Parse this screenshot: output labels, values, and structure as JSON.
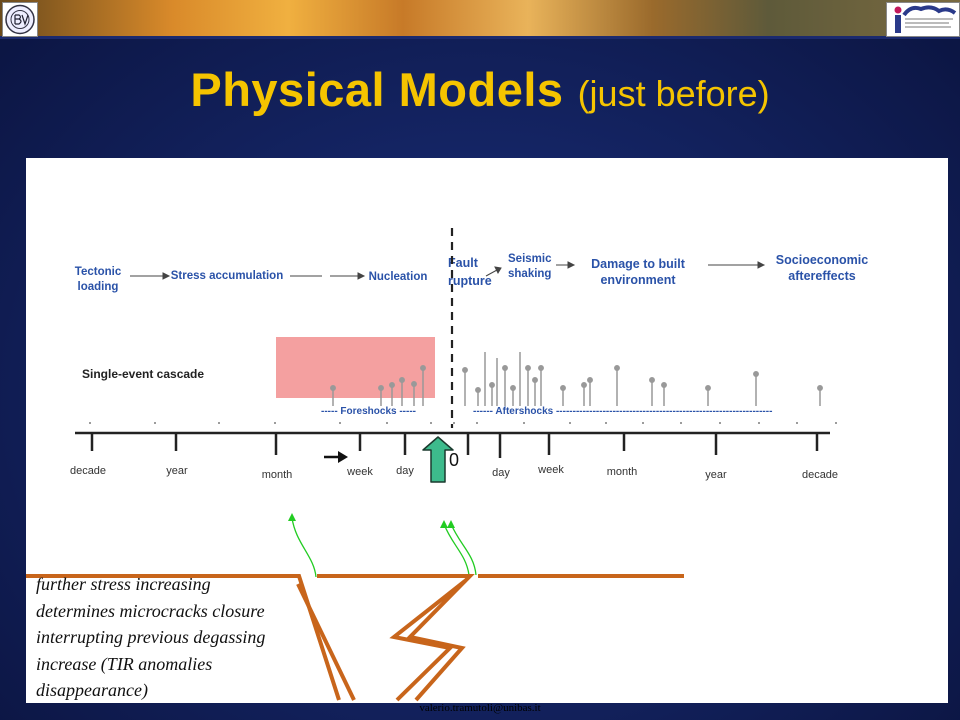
{
  "header": {
    "title_main": "Physical Models",
    "title_sub": "(just before)"
  },
  "process_chain": [
    "Tectonic loading",
    "Stress accumulation",
    "Nucleation",
    "Fault rupture",
    "Seismic shaking",
    "Damage to built environment",
    "Socioeconomic aftereffects"
  ],
  "cascade": {
    "label": "Single-event cascade",
    "foreshocks_label": "----- Foreshocks -----",
    "aftershocks_label": "------ Aftershocks -----------------------------------------------------------------"
  },
  "timeline": {
    "origin_label": "0",
    "left_ticks": [
      "decade",
      "year",
      "month",
      "week",
      "day"
    ],
    "right_ticks": [
      "day",
      "week",
      "month",
      "year",
      "decade"
    ]
  },
  "caption_lines": [
    "further stress increasing",
    "determines microcracks closure",
    "interrupting previous degassing",
    "increase (TIR anomalies",
    "disappearance)"
  ],
  "footer": {
    "email": "valerio.tramutoli@unibas.it"
  },
  "colors": {
    "title": "#f5c400",
    "fault": "#c8651b",
    "gas_arrow": "#22cc22",
    "highlight": "#f4a0a0",
    "origin_arrow": "#3dbb8c",
    "diagram_blue": "#2a52a8"
  },
  "icons": [
    "right-arrow-icon",
    "up-arrow-icon",
    "university-logo-icon",
    "imaa-logo-icon"
  ]
}
